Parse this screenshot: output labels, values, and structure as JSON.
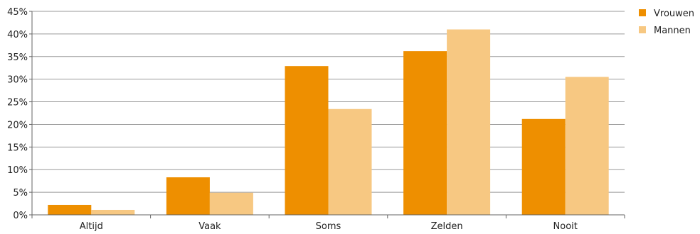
{
  "chart_data": {
    "type": "bar",
    "categories": [
      "Altijd",
      "Vaak",
      "Soms",
      "Zelden",
      "Nooit"
    ],
    "series": [
      {
        "name": "Vrouwen",
        "values": [
          2.2,
          8.3,
          32.9,
          36.2,
          21.2
        ],
        "color": "#EE8F00"
      },
      {
        "name": "Mannen",
        "values": [
          1.1,
          4.9,
          23.4,
          41.0,
          30.5
        ],
        "color": "#F7C882"
      }
    ],
    "ylim": [
      0,
      45
    ],
    "yticks": [
      "0%",
      "5%",
      "10%",
      "15%",
      "20%",
      "25%",
      "30%",
      "35%",
      "40%",
      "45%"
    ],
    "ytick_values": [
      0,
      5,
      10,
      15,
      20,
      25,
      30,
      35,
      40,
      45
    ],
    "grid": true,
    "legend_position": "top-right",
    "title": "",
    "xlabel": "",
    "ylabel": ""
  }
}
